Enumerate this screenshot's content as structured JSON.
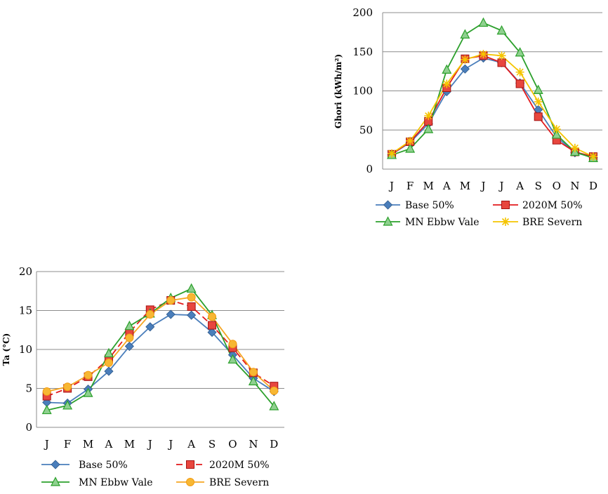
{
  "chart_data": [
    {
      "type": "line",
      "ylabel": "Ghori (kWh/m²)",
      "categories": [
        "J",
        "F",
        "M",
        "A",
        "M",
        "J",
        "J",
        "A",
        "S",
        "O",
        "N",
        "D"
      ],
      "ylim": [
        0,
        200
      ],
      "yticks": [
        "0",
        "50",
        "100",
        "150",
        "200"
      ],
      "grid": true,
      "legend_position": "bottom",
      "series": [
        {
          "name": "Base 50%",
          "color": "#4a7ebb",
          "marker": "diamond",
          "dash": false,
          "values": [
            19,
            34,
            58,
            99,
            128,
            142,
            136,
            110,
            76,
            41,
            21,
            15
          ]
        },
        {
          "name": "2020M 50%",
          "color": "#e31a1c",
          "marker": "square",
          "dash": false,
          "values": [
            19,
            35,
            61,
            104,
            141,
            145,
            136,
            109,
            67,
            37,
            22,
            16
          ]
        },
        {
          "name": "MN Ebbw Vale",
          "color": "#2ca02c",
          "marker": "triangle",
          "dash": false,
          "values": [
            18,
            26,
            51,
            127,
            172,
            187,
            177,
            149,
            101,
            44,
            22,
            14
          ]
        },
        {
          "name": "BRE Severn",
          "color": "#f5c400",
          "marker": "star",
          "dash": false,
          "values": [
            20,
            36,
            68,
            109,
            140,
            147,
            145,
            124,
            86,
            51,
            27,
            16
          ]
        }
      ]
    },
    {
      "type": "line",
      "ylabel": "Ta (°C)",
      "categories": [
        "J",
        "F",
        "M",
        "A",
        "M",
        "J",
        "J",
        "A",
        "S",
        "O",
        "N",
        "D"
      ],
      "ylim": [
        0,
        20
      ],
      "yticks": [
        "0",
        "5",
        "10",
        "15",
        "20"
      ],
      "grid": true,
      "legend_position": "bottom",
      "series": [
        {
          "name": "Base 50%",
          "color": "#4a7ebb",
          "marker": "diamond",
          "dash": false,
          "values": [
            3.2,
            3.1,
            4.9,
            7.2,
            10.4,
            12.9,
            14.5,
            14.4,
            12.2,
            9.3,
            6.3,
            4.6
          ]
        },
        {
          "name": "2020M 50%",
          "color": "#e31a1c",
          "marker": "square",
          "dash": true,
          "values": [
            4.0,
            5.0,
            6.5,
            8.8,
            12.2,
            15.1,
            16.3,
            15.5,
            13.1,
            10.2,
            7.0,
            5.3
          ]
        },
        {
          "name": "MN Ebbw Vale",
          "color": "#2ca02c",
          "marker": "triangle",
          "dash": false,
          "values": [
            2.2,
            2.8,
            4.4,
            9.5,
            13.0,
            14.6,
            16.6,
            17.8,
            14.4,
            8.7,
            5.9,
            2.7
          ]
        },
        {
          "name": "BRE Severn",
          "color": "#f5a623",
          "marker": "circle",
          "dash": false,
          "values": [
            4.6,
            5.2,
            6.7,
            8.3,
            11.5,
            14.5,
            16.3,
            16.7,
            14.2,
            10.7,
            7.1,
            4.7
          ]
        }
      ]
    }
  ]
}
